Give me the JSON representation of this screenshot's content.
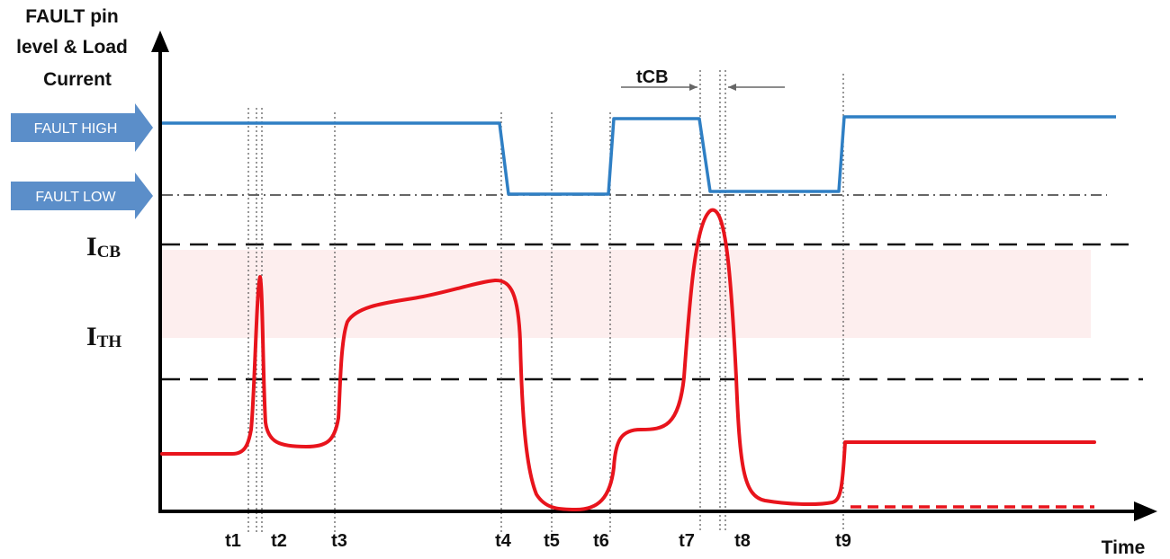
{
  "y_axis_title": [
    "FAULT pin",
    "level & Load",
    "Current"
  ],
  "x_axis_title": "Time",
  "fault_levels": {
    "high_label": "FAULT HIGH",
    "low_label": "FAULT LOW"
  },
  "current_levels": {
    "icb": {
      "main": "I",
      "sub": "CB"
    },
    "ith": {
      "main": "I",
      "sub": "TH"
    }
  },
  "tcb_label": "tCB",
  "time_markers": [
    "t1",
    "t2",
    "t3",
    "t4",
    "t5",
    "t6",
    "t7",
    "t8",
    "t9"
  ],
  "colors": {
    "fault_trace": "#2f7fc4",
    "current_trace": "#e8141c",
    "arrow_fill": "#5b8ec9",
    "threshold_band": "#fdeeee",
    "axis": "#000000",
    "guide": "#555555"
  }
}
